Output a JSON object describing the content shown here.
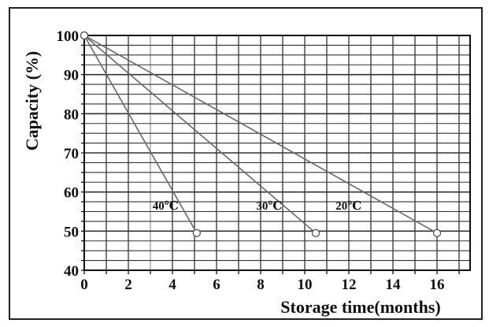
{
  "chart_data": {
    "type": "line",
    "title": "",
    "xlabel": "Storage time(months)",
    "ylabel": "Capacity (%)",
    "xlim": [
      0,
      17.5
    ],
    "ylim": [
      40,
      100
    ],
    "x_ticks": [
      0,
      2,
      4,
      6,
      8,
      10,
      12,
      14,
      16
    ],
    "y_ticks": [
      40,
      50,
      60,
      70,
      80,
      90,
      100
    ],
    "grid": true,
    "legend": "none",
    "series": [
      {
        "name": "40℃",
        "x": [
          0,
          5.1
        ],
        "y": [
          100,
          49.5
        ],
        "color": "#6a6a6a"
      },
      {
        "name": "30℃",
        "x": [
          0,
          10.5
        ],
        "y": [
          100,
          49.5
        ],
        "color": "#6a6a6a"
      },
      {
        "name": "20℃",
        "x": [
          0,
          16.0
        ],
        "y": [
          100,
          49.5
        ],
        "color": "#6a6a6a"
      }
    ],
    "series_label_positions": [
      {
        "x": 3.1,
        "y": 55.5
      },
      {
        "x": 7.8,
        "y": 55.5
      },
      {
        "x": 11.4,
        "y": 55.5
      }
    ]
  }
}
